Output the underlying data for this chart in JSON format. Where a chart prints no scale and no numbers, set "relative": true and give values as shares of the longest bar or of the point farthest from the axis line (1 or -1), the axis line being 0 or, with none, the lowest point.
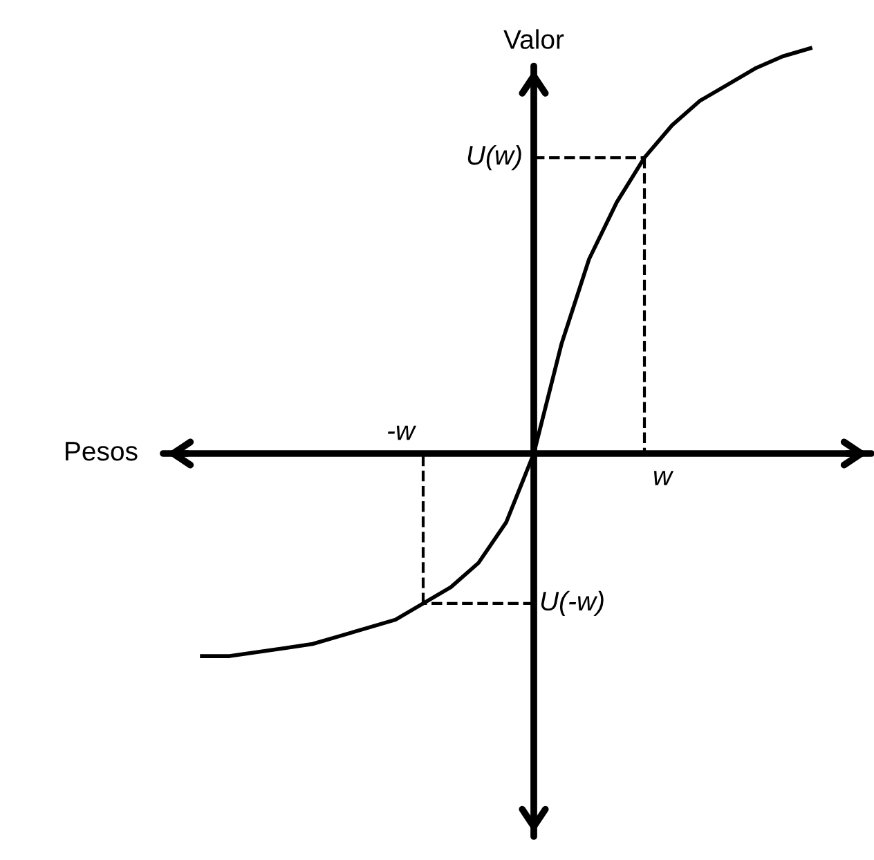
{
  "chart_data": {
    "type": "line",
    "relative": true,
    "xlabel": "Pesos",
    "ylabel": "Valor",
    "categories": [
      null,
      null,
      null,
      null,
      null,
      null,
      null,
      null,
      null,
      null,
      null,
      null,
      null,
      null,
      null,
      null,
      null,
      null,
      null,
      null,
      null,
      null,
      null
    ],
    "series": [
      {
        "color": "#000000",
        "values": [
          -0.5,
          -0.5,
          -0.49,
          -0.48,
          -0.47,
          -0.45,
          -0.43,
          -0.41,
          -0.37,
          -0.33,
          -0.27,
          -0.17,
          0,
          0.27,
          0.48,
          0.62,
          0.73,
          0.81,
          0.87,
          0.91,
          0.95,
          0.98,
          1.0
        ]
      }
    ],
    "ref_lines": [
      {
        "axis": "y",
        "value": 0.73,
        "label": "U(w)",
        "line_style": "dashed"
      },
      {
        "axis": "y",
        "value": -0.37,
        "label": "U(-w)",
        "line_style": "dashed"
      }
    ],
    "annotations": [
      "w",
      "-w"
    ]
  }
}
